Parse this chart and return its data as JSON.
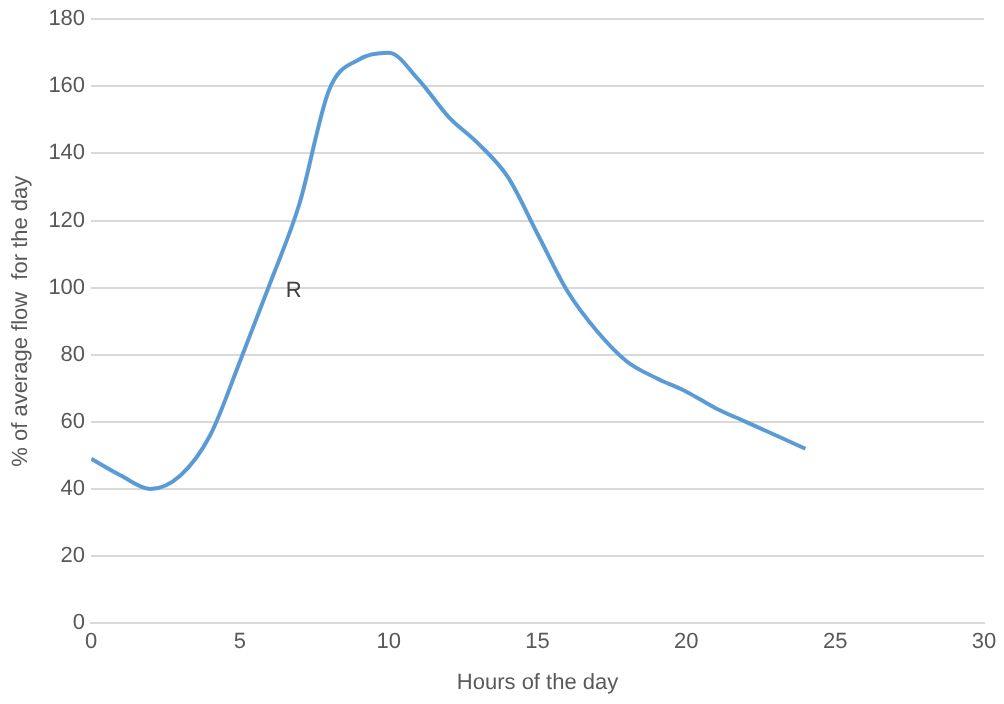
{
  "chart_data": {
    "type": "line",
    "xlabel": "Hours of the day",
    "ylabel": "% of average flow  for the day",
    "xlim": [
      0,
      30
    ],
    "xticks": [
      0,
      5,
      10,
      15,
      20,
      25,
      30
    ],
    "ylim": [
      0,
      180
    ],
    "yticks": [
      0,
      20,
      40,
      60,
      80,
      100,
      120,
      140,
      160,
      180
    ],
    "grid": "y",
    "marker": "none",
    "line_style": "solid",
    "series": [
      {
        "color": "#5b9bd5",
        "x": [
          0,
          1,
          2,
          3,
          4,
          5,
          6,
          7,
          8,
          9,
          10,
          11,
          12,
          13,
          14,
          15,
          16,
          17,
          18,
          19,
          20,
          21,
          22,
          23,
          24
        ],
        "values": [
          49,
          44,
          40,
          44,
          56,
          78,
          101,
          125,
          159,
          168,
          170,
          162,
          151,
          143,
          133,
          116,
          99,
          87,
          78,
          73,
          69,
          64,
          60,
          56,
          52
        ]
      }
    ],
    "annotations": [
      "R"
    ]
  }
}
